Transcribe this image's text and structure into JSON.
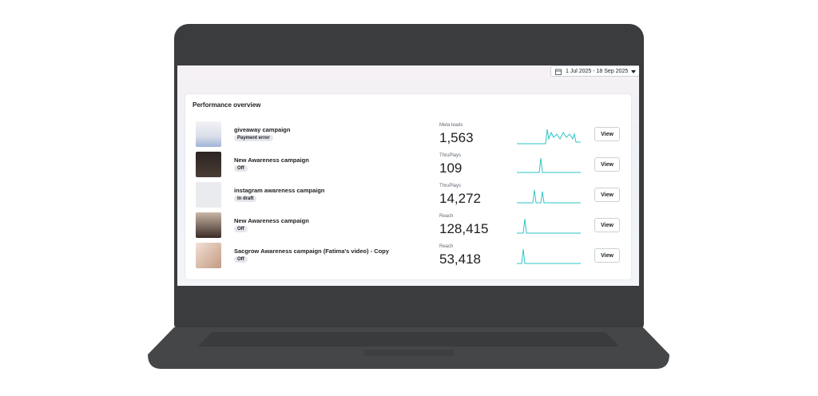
{
  "header": {
    "date_range": "1 Jul 2025 - 18 Sep 2025"
  },
  "panel": {
    "title": "Performance overview",
    "rows": [
      {
        "name": "giveaway campaign",
        "status": "Payment error",
        "metric": "Meta leads",
        "value": "1,563",
        "action": "View"
      },
      {
        "name": "New Awareness campaign",
        "status": "Off",
        "metric": "ThruPlays",
        "value": "109",
        "action": "View"
      },
      {
        "name": "instagram awareness campaign",
        "status": "In draft",
        "metric": "ThruPlays",
        "value": "14,272",
        "action": "View"
      },
      {
        "name": "New Awareness campaign",
        "status": "Off",
        "metric": "Reach",
        "value": "128,415",
        "action": "View"
      },
      {
        "name": "Sacgrow Awareness campaign (Fatima's video) - Copy",
        "status": "Off",
        "metric": "Reach",
        "value": "53,418",
        "action": "View"
      }
    ]
  }
}
